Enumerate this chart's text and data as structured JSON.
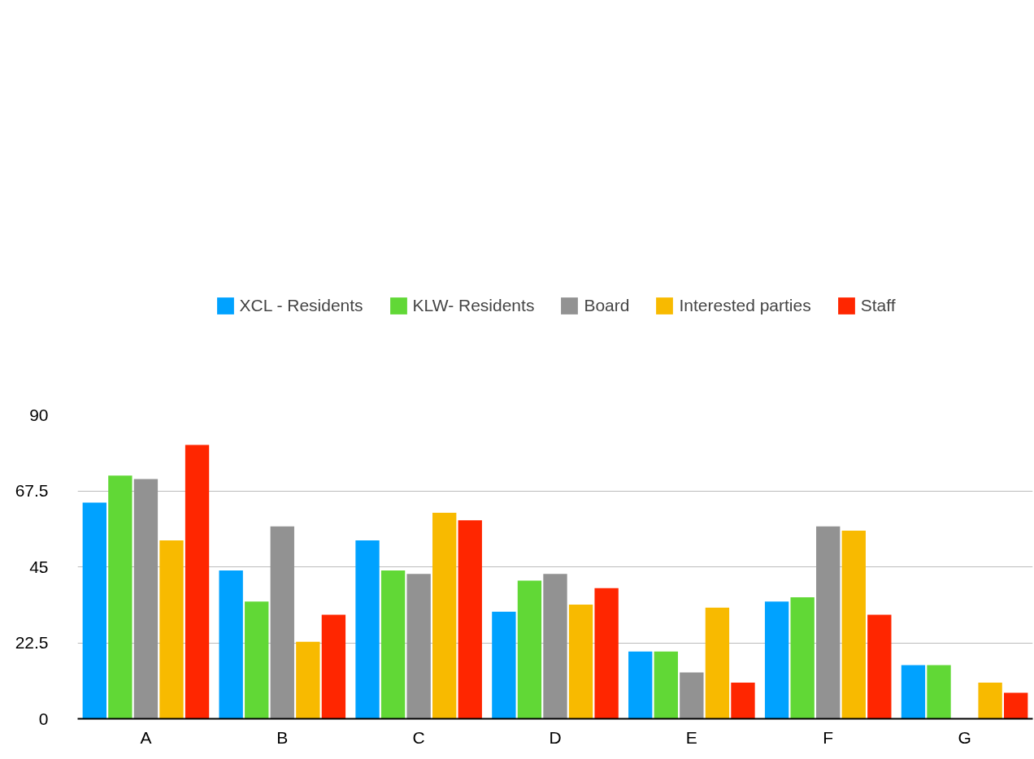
{
  "chart_data": {
    "type": "bar",
    "categories": [
      "A",
      "B",
      "C",
      "D",
      "E",
      "F",
      "G"
    ],
    "series": [
      {
        "name": "XCL - Residents",
        "color": "#00a2ff",
        "values": [
          64,
          43.9,
          52.8,
          31.7,
          19.9,
          34.7,
          15.9
        ]
      },
      {
        "name": "KLW- Residents",
        "color": "#61d836",
        "values": [
          72,
          34.7,
          43.9,
          40.9,
          19.9,
          36,
          15.9
        ]
      },
      {
        "name": "Board",
        "color": "#929292",
        "values": [
          71,
          57,
          42.9,
          42.9,
          13.7,
          57,
          0
        ]
      },
      {
        "name": "Interested parties",
        "color": "#f8ba00",
        "values": [
          52.8,
          22.8,
          61,
          33.8,
          32.9,
          55.7,
          10.7
        ]
      },
      {
        "name": "Staff",
        "color": "#ff2600",
        "values": [
          81.1,
          30.8,
          58.8,
          38.7,
          10.7,
          30.8,
          7.7
        ]
      }
    ],
    "ylim": [
      0,
      90
    ],
    "yticks": [
      0,
      22.5,
      45,
      67.5,
      90
    ],
    "grid": "y",
    "legend": "top"
  }
}
